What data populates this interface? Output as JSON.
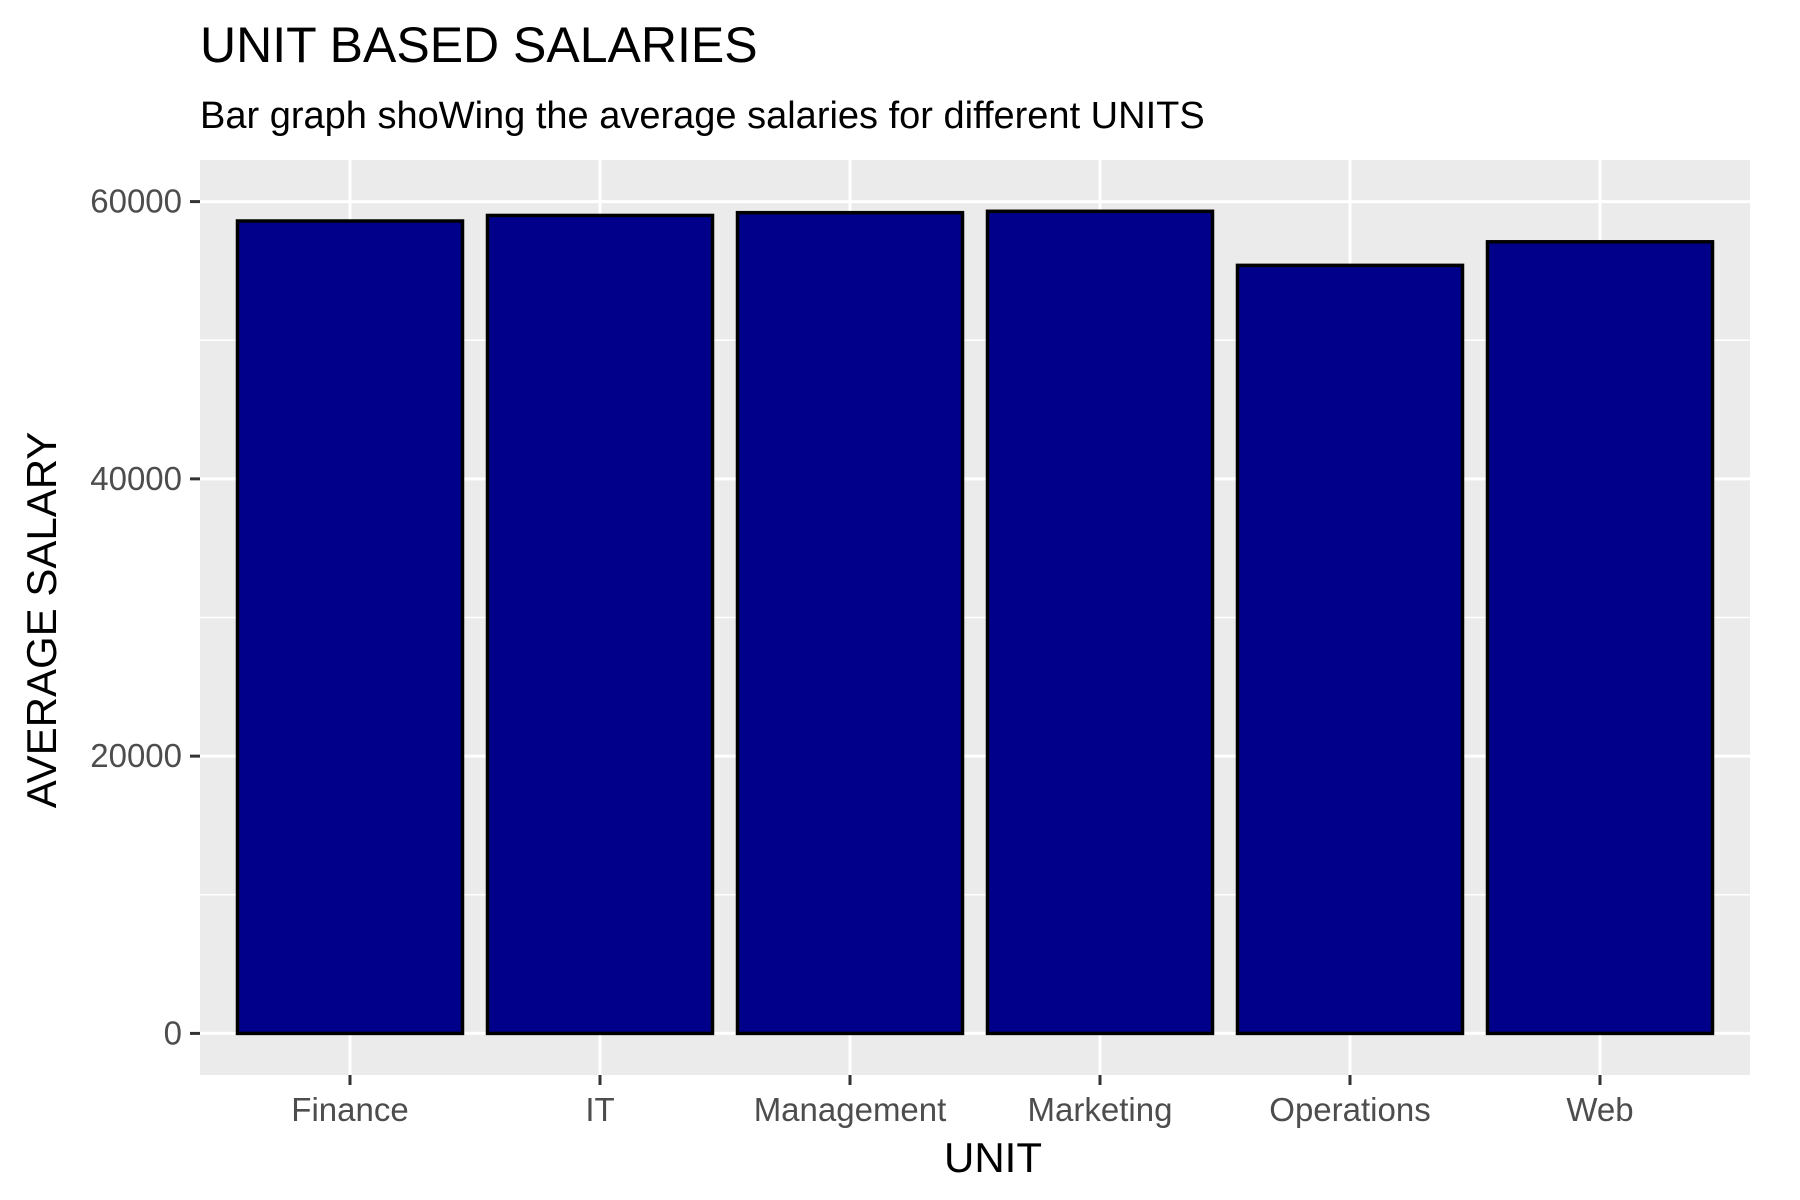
{
  "chart_data": {
    "type": "bar",
    "title": "UNIT BASED SALARIES",
    "subtitle": "Bar graph shoWing the average salaries for different UNITS",
    "xlabel": "UNIT",
    "ylabel": "AVERAGE SALARY",
    "categories": [
      "Finance",
      "IT",
      "Management",
      "Marketing",
      "Operations",
      "Web"
    ],
    "values": [
      58600,
      59000,
      59200,
      59300,
      55400,
      57100
    ],
    "ylim": [
      -3000,
      63000
    ],
    "yticks": [
      0,
      20000,
      40000,
      60000
    ],
    "ytick_labels": [
      "0",
      "20000",
      "40000",
      "60000"
    ],
    "grid": true,
    "colors": {
      "bar_fill": "#00008B",
      "bar_stroke": "#000000",
      "panel_background": "#EBEBEB",
      "gridline": "#FFFFFF",
      "tick_mark": "#333333"
    }
  }
}
